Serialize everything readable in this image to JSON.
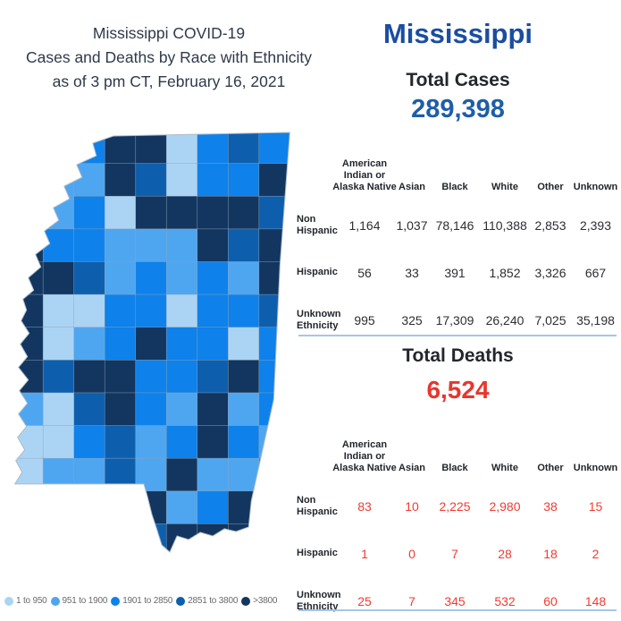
{
  "title": {
    "lines": [
      "Mississippi COVID-19",
      "Cases and Deaths by Race with Ethnicity",
      "as of 3 pm CT, February 16, 2021"
    ]
  },
  "state_header": "Mississippi",
  "cases": {
    "section_label": "Total Cases",
    "total": "289,398",
    "columns": [
      "American Indian or Alaska Native",
      "Asian",
      "Black",
      "White",
      "Other",
      "Unknown"
    ],
    "rows": [
      {
        "label": "Non Hispanic",
        "values": [
          "1,164",
          "1,037",
          "78,146",
          "110,388",
          "2,853",
          "2,393"
        ]
      },
      {
        "label": "Hispanic",
        "values": [
          "56",
          "33",
          "391",
          "1,852",
          "3,326",
          "667"
        ]
      },
      {
        "label": "Unknown Ethnicity",
        "values": [
          "995",
          "325",
          "17,309",
          "26,240",
          "7,025",
          "35,198"
        ]
      }
    ]
  },
  "deaths": {
    "section_label": "Total Deaths",
    "total": "6,524",
    "columns": [
      "American Indian or Alaska Native",
      "Asian",
      "Black",
      "White",
      "Other",
      "Unknown"
    ],
    "rows": [
      {
        "label": "Non Hispanic",
        "values": [
          "83",
          "10",
          "2,225",
          "2,980",
          "38",
          "15"
        ]
      },
      {
        "label": "Hispanic",
        "values": [
          "1",
          "0",
          "7",
          "28",
          "18",
          "2"
        ]
      },
      {
        "label": "Unknown Ethnicity",
        "values": [
          "25",
          "7",
          "345",
          "532",
          "60",
          "148"
        ]
      }
    ]
  },
  "map": {
    "legend": [
      {
        "label": "1 to 950",
        "color": "#ABD4F4"
      },
      {
        "label": "951 to 1900",
        "color": "#4FA6F0"
      },
      {
        "label": "1901 to 2850",
        "color": "#0E81EB"
      },
      {
        "label": "2851 to 3800",
        "color": "#0D5FAE"
      },
      {
        "label": ">3800",
        "color": "#12365F"
      }
    ],
    "pattern": [
      [
        2,
        2,
        2,
        4,
        4,
        0,
        2,
        3,
        2
      ],
      [
        1,
        1,
        1,
        4,
        3,
        0,
        2,
        2,
        4
      ],
      [
        1,
        1,
        2,
        0,
        4,
        4,
        4,
        4,
        3
      ],
      [
        4,
        2,
        2,
        1,
        1,
        1,
        4,
        3,
        4
      ],
      [
        4,
        4,
        3,
        1,
        2,
        1,
        2,
        1,
        4
      ],
      [
        4,
        0,
        0,
        2,
        2,
        0,
        2,
        2,
        3
      ],
      [
        4,
        0,
        1,
        2,
        4,
        2,
        2,
        0,
        2
      ],
      [
        4,
        3,
        4,
        4,
        2,
        2,
        3,
        4,
        2
      ],
      [
        1,
        0,
        3,
        4,
        2,
        1,
        4,
        1,
        2
      ],
      [
        0,
        0,
        2,
        3,
        1,
        2,
        4,
        2,
        1
      ],
      [
        0,
        1,
        1,
        3,
        1,
        4,
        1,
        1,
        2
      ],
      [
        0,
        1,
        1,
        4,
        4,
        1,
        2,
        4,
        4
      ],
      [
        0,
        1,
        1,
        3,
        3,
        4,
        4,
        4,
        4
      ]
    ]
  },
  "colors": {
    "brand_blue": "#1B4DA1",
    "cases_number_blue": "#1E5EA8",
    "deaths_red": "#E9352D",
    "deaths_table_red": "#F23B31",
    "divider_blue": "#A6C6E8",
    "heading_dark": "#23262D",
    "title_gray": "#2E3A4B",
    "legend_text_gray": "#6A6A6A"
  },
  "chart_data": [
    {
      "type": "heatmap",
      "subtype": "choropleth-map",
      "title": "Mississippi COVID-19 cases by county",
      "legend_position": "bottom",
      "bins": [
        "1 to 950",
        "951 to 1900",
        "1901 to 2850",
        "2851 to 3800",
        ">3800"
      ],
      "bin_colors": [
        "#ABD4F4",
        "#4FA6F0",
        "#0E81EB",
        "#0D5FAE",
        "#12365F"
      ]
    },
    {
      "type": "table",
      "title": "Total Cases",
      "total": 289398,
      "columns": [
        "American Indian or Alaska Native",
        "Asian",
        "Black",
        "White",
        "Other",
        "Unknown"
      ],
      "rows": [
        {
          "label": "Non Hispanic",
          "values": [
            1164,
            1037,
            78146,
            110388,
            2853,
            2393
          ]
        },
        {
          "label": "Hispanic",
          "values": [
            56,
            33,
            391,
            1852,
            3326,
            667
          ]
        },
        {
          "label": "Unknown Ethnicity",
          "values": [
            995,
            325,
            17309,
            26240,
            7025,
            35198
          ]
        }
      ]
    },
    {
      "type": "table",
      "title": "Total Deaths",
      "total": 6524,
      "columns": [
        "American Indian or Alaska Native",
        "Asian",
        "Black",
        "White",
        "Other",
        "Unknown"
      ],
      "rows": [
        {
          "label": "Non Hispanic",
          "values": [
            83,
            10,
            2225,
            2980,
            38,
            15
          ]
        },
        {
          "label": "Hispanic",
          "values": [
            1,
            0,
            7,
            28,
            18,
            2
          ]
        },
        {
          "label": "Unknown Ethnicity",
          "values": [
            25,
            7,
            345,
            532,
            60,
            148
          ]
        }
      ]
    }
  ]
}
